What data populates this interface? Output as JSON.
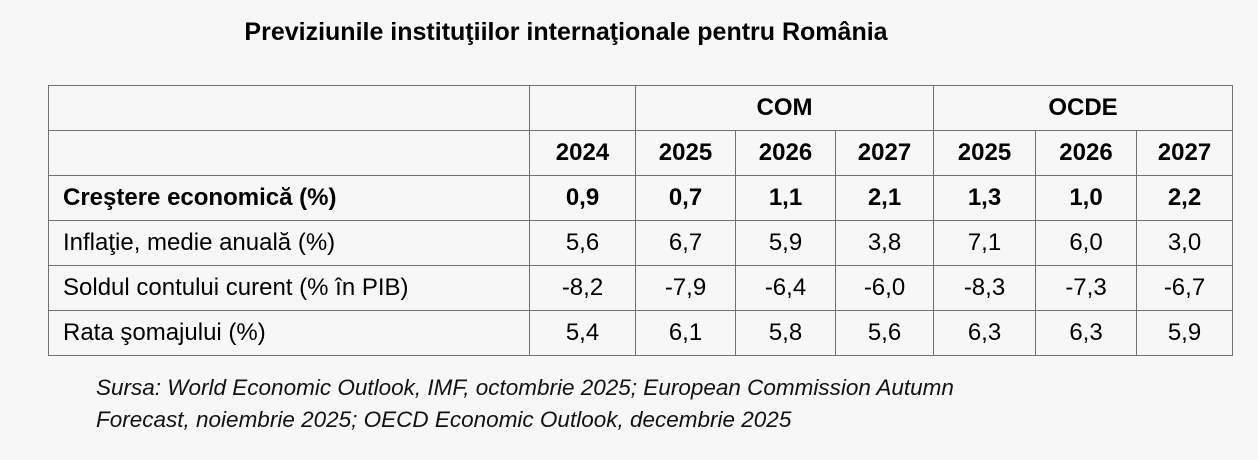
{
  "title": "Previziunile instituţiilor internaţionale pentru România",
  "groups": [
    "COM",
    "OCDE"
  ],
  "years": [
    "2024",
    "2025",
    "2026",
    "2027",
    "2025",
    "2026",
    "2027"
  ],
  "rows": [
    {
      "label": "Creştere economică (%)",
      "values": [
        "0,9",
        "0,7",
        "1,1",
        "2,1",
        "1,3",
        "1,0",
        "2,2"
      ]
    },
    {
      "label": "Inflaţie, medie anuală (%)",
      "values": [
        "5,6",
        "6,7",
        "5,9",
        "3,8",
        "7,1",
        "6,0",
        "3,0"
      ]
    },
    {
      "label": "Soldul contului curent (% în PIB)",
      "values": [
        "-8,2",
        "-7,9",
        "-6,4",
        "-6,0",
        "-8,3",
        "-7,3",
        "-6,7"
      ]
    },
    {
      "label": "Rata şomajului (%)",
      "values": [
        "5,4",
        "6,1",
        "5,8",
        "5,6",
        "6,3",
        "6,3",
        "5,9"
      ]
    }
  ],
  "source": {
    "line1": "Sursa: World Economic Outlook, IMF, octombrie 2025; European Commission Autumn",
    "line2": "Forecast, noiembrie 2025; OECD Economic Outlook, decembrie 2025"
  }
}
